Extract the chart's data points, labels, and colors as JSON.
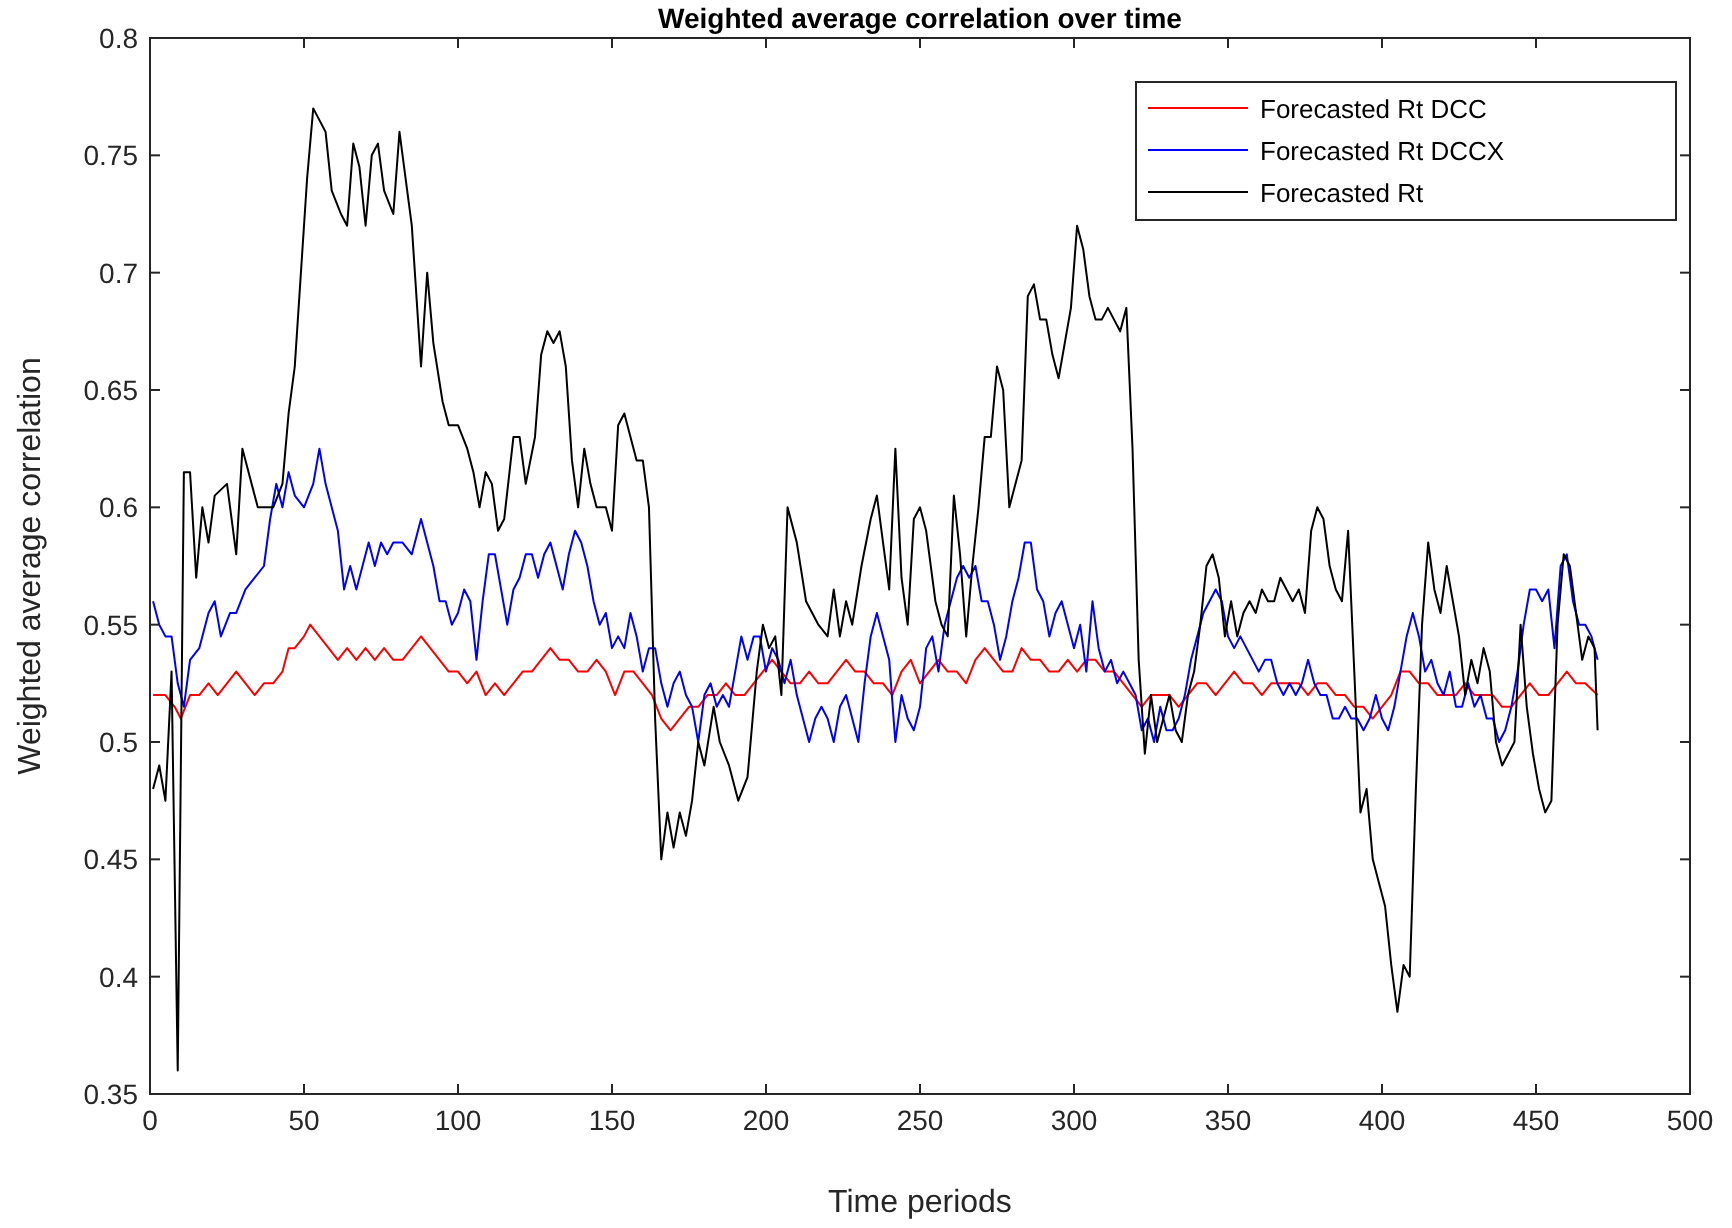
{
  "chart_data": {
    "type": "line",
    "title": "Weighted average correlation over time",
    "xlabel": "Time periods",
    "ylabel": "Weighted average correlation",
    "xlim": [
      0,
      500
    ],
    "xticks": [
      0,
      50,
      100,
      150,
      200,
      250,
      300,
      350,
      400,
      450,
      500
    ],
    "ylim": [
      0.35,
      0.8
    ],
    "yticks": [
      0.35,
      0.4,
      0.45,
      0.5,
      0.55,
      0.6,
      0.65,
      0.7,
      0.75,
      0.8
    ],
    "legend": "top right",
    "grid": false,
    "marker": "none",
    "line_style": "solid",
    "series": [
      {
        "name": "Forecasted Rt DCC",
        "color": "#ff0000",
        "x": [
          1,
          5,
          8,
          10,
          13,
          16,
          19,
          22,
          25,
          28,
          31,
          34,
          37,
          40,
          43,
          45,
          47,
          50,
          52,
          55,
          58,
          61,
          64,
          67,
          70,
          73,
          76,
          79,
          82,
          85,
          88,
          91,
          94,
          97,
          100,
          103,
          106,
          109,
          112,
          115,
          118,
          121,
          124,
          127,
          130,
          133,
          136,
          139,
          142,
          145,
          148,
          151,
          154,
          157,
          160,
          163,
          166,
          169,
          172,
          175,
          178,
          181,
          184,
          187,
          190,
          193,
          196,
          199,
          202,
          205,
          208,
          211,
          214,
          217,
          220,
          223,
          226,
          229,
          232,
          235,
          238,
          241,
          244,
          247,
          250,
          253,
          256,
          259,
          262,
          265,
          268,
          271,
          274,
          277,
          280,
          283,
          286,
          289,
          292,
          295,
          298,
          301,
          304,
          307,
          310,
          313,
          316,
          319,
          322,
          325,
          328,
          331,
          334,
          337,
          340,
          343,
          346,
          349,
          352,
          355,
          358,
          361,
          364,
          367,
          370,
          373,
          376,
          379,
          382,
          385,
          388,
          391,
          394,
          397,
          400,
          403,
          406,
          409,
          412,
          415,
          418,
          421,
          424,
          427,
          430,
          433,
          436,
          439,
          442,
          445,
          448,
          451,
          454,
          457,
          460,
          463,
          466,
          470
        ],
        "values": [
          0.52,
          0.52,
          0.515,
          0.51,
          0.52,
          0.52,
          0.525,
          0.52,
          0.525,
          0.53,
          0.525,
          0.52,
          0.525,
          0.525,
          0.53,
          0.54,
          0.54,
          0.545,
          0.55,
          0.545,
          0.54,
          0.535,
          0.54,
          0.535,
          0.54,
          0.535,
          0.54,
          0.535,
          0.535,
          0.54,
          0.545,
          0.54,
          0.535,
          0.53,
          0.53,
          0.525,
          0.53,
          0.52,
          0.525,
          0.52,
          0.525,
          0.53,
          0.53,
          0.535,
          0.54,
          0.535,
          0.535,
          0.53,
          0.53,
          0.535,
          0.53,
          0.52,
          0.53,
          0.53,
          0.525,
          0.52,
          0.51,
          0.505,
          0.51,
          0.515,
          0.515,
          0.52,
          0.52,
          0.525,
          0.52,
          0.52,
          0.525,
          0.53,
          0.535,
          0.53,
          0.525,
          0.525,
          0.53,
          0.525,
          0.525,
          0.53,
          0.535,
          0.53,
          0.53,
          0.525,
          0.525,
          0.52,
          0.53,
          0.535,
          0.525,
          0.53,
          0.535,
          0.53,
          0.53,
          0.525,
          0.535,
          0.54,
          0.535,
          0.53,
          0.53,
          0.54,
          0.535,
          0.535,
          0.53,
          0.53,
          0.535,
          0.53,
          0.535,
          0.535,
          0.53,
          0.53,
          0.525,
          0.52,
          0.515,
          0.52,
          0.52,
          0.52,
          0.515,
          0.52,
          0.525,
          0.525,
          0.52,
          0.525,
          0.53,
          0.525,
          0.525,
          0.52,
          0.525,
          0.525,
          0.525,
          0.525,
          0.52,
          0.525,
          0.525,
          0.52,
          0.52,
          0.515,
          0.515,
          0.51,
          0.515,
          0.52,
          0.53,
          0.53,
          0.525,
          0.525,
          0.52,
          0.52,
          0.52,
          0.525,
          0.52,
          0.52,
          0.52,
          0.515,
          0.515,
          0.52,
          0.525,
          0.52,
          0.52,
          0.525,
          0.53,
          0.525,
          0.525,
          0.52
        ]
      },
      {
        "name": "Forecasted Rt DCCX",
        "color": "#0000ff",
        "x": [
          1,
          3,
          5,
          7,
          9,
          11,
          13,
          16,
          19,
          21,
          23,
          26,
          28,
          31,
          34,
          37,
          39,
          41,
          43,
          45,
          47,
          50,
          53,
          55,
          57,
          59,
          61,
          63,
          65,
          67,
          69,
          71,
          73,
          75,
          77,
          79,
          82,
          85,
          88,
          90,
          92,
          94,
          96,
          98,
          100,
          102,
          104,
          106,
          108,
          110,
          112,
          114,
          116,
          118,
          120,
          122,
          124,
          126,
          128,
          130,
          132,
          134,
          136,
          138,
          140,
          142,
          144,
          146,
          148,
          150,
          152,
          154,
          156,
          158,
          160,
          162,
          164,
          166,
          168,
          170,
          172,
          174,
          176,
          178,
          180,
          182,
          184,
          186,
          188,
          190,
          192,
          194,
          196,
          198,
          200,
          202,
          204,
          206,
          208,
          210,
          212,
          214,
          216,
          218,
          220,
          222,
          224,
          226,
          228,
          230,
          232,
          234,
          236,
          238,
          240,
          242,
          244,
          246,
          248,
          250,
          252,
          254,
          256,
          258,
          260,
          262,
          264,
          266,
          268,
          270,
          272,
          274,
          276,
          278,
          280,
          282,
          284,
          286,
          288,
          290,
          292,
          294,
          296,
          298,
          300,
          302,
          304,
          306,
          308,
          310,
          312,
          314,
          316,
          318,
          320,
          322,
          324,
          326,
          328,
          330,
          332,
          334,
          336,
          338,
          340,
          342,
          344,
          346,
          348,
          350,
          352,
          354,
          356,
          358,
          360,
          362,
          364,
          366,
          368,
          370,
          372,
          374,
          376,
          378,
          380,
          382,
          384,
          386,
          388,
          390,
          392,
          394,
          396,
          398,
          400,
          402,
          404,
          406,
          408,
          410,
          412,
          414,
          416,
          418,
          420,
          422,
          424,
          426,
          428,
          430,
          432,
          434,
          436,
          438,
          440,
          442,
          444,
          446,
          448,
          450,
          452,
          454,
          456,
          458,
          460,
          462,
          464,
          466,
          468,
          470
        ],
        "values": [
          0.56,
          0.55,
          0.545,
          0.545,
          0.525,
          0.515,
          0.535,
          0.54,
          0.555,
          0.56,
          0.545,
          0.555,
          0.555,
          0.565,
          0.57,
          0.575,
          0.595,
          0.61,
          0.6,
          0.615,
          0.605,
          0.6,
          0.61,
          0.625,
          0.61,
          0.6,
          0.59,
          0.565,
          0.575,
          0.565,
          0.575,
          0.585,
          0.575,
          0.585,
          0.58,
          0.585,
          0.585,
          0.58,
          0.595,
          0.585,
          0.575,
          0.56,
          0.56,
          0.55,
          0.555,
          0.565,
          0.56,
          0.535,
          0.56,
          0.58,
          0.58,
          0.565,
          0.55,
          0.565,
          0.57,
          0.58,
          0.58,
          0.57,
          0.58,
          0.585,
          0.575,
          0.565,
          0.58,
          0.59,
          0.585,
          0.575,
          0.56,
          0.55,
          0.555,
          0.54,
          0.545,
          0.54,
          0.555,
          0.545,
          0.53,
          0.54,
          0.54,
          0.525,
          0.515,
          0.525,
          0.53,
          0.52,
          0.515,
          0.5,
          0.52,
          0.525,
          0.515,
          0.52,
          0.515,
          0.53,
          0.545,
          0.535,
          0.545,
          0.545,
          0.53,
          0.54,
          0.535,
          0.525,
          0.535,
          0.52,
          0.51,
          0.5,
          0.51,
          0.515,
          0.51,
          0.5,
          0.515,
          0.52,
          0.51,
          0.5,
          0.525,
          0.545,
          0.555,
          0.545,
          0.535,
          0.5,
          0.52,
          0.51,
          0.505,
          0.515,
          0.54,
          0.545,
          0.53,
          0.55,
          0.56,
          0.57,
          0.575,
          0.57,
          0.575,
          0.56,
          0.56,
          0.55,
          0.535,
          0.545,
          0.56,
          0.57,
          0.585,
          0.585,
          0.565,
          0.56,
          0.545,
          0.555,
          0.56,
          0.55,
          0.54,
          0.55,
          0.53,
          0.56,
          0.54,
          0.53,
          0.535,
          0.525,
          0.53,
          0.525,
          0.52,
          0.505,
          0.51,
          0.5,
          0.515,
          0.505,
          0.505,
          0.51,
          0.52,
          0.535,
          0.545,
          0.555,
          0.56,
          0.565,
          0.56,
          0.545,
          0.54,
          0.545,
          0.54,
          0.535,
          0.53,
          0.535,
          0.535,
          0.525,
          0.52,
          0.525,
          0.52,
          0.525,
          0.535,
          0.525,
          0.52,
          0.52,
          0.51,
          0.51,
          0.515,
          0.51,
          0.51,
          0.505,
          0.51,
          0.52,
          0.51,
          0.505,
          0.515,
          0.53,
          0.545,
          0.555,
          0.545,
          0.53,
          0.535,
          0.525,
          0.52,
          0.53,
          0.515,
          0.515,
          0.525,
          0.515,
          0.52,
          0.51,
          0.51,
          0.5,
          0.505,
          0.515,
          0.53,
          0.55,
          0.565,
          0.565,
          0.56,
          0.565,
          0.54,
          0.575,
          0.58,
          0.56,
          0.55,
          0.55,
          0.545,
          0.535
        ]
      },
      {
        "name": "Forecasted Rt",
        "color": "#000000",
        "x": [
          1,
          3,
          5,
          7,
          9,
          11,
          13,
          15,
          17,
          19,
          21,
          25,
          28,
          30,
          35,
          40,
          43,
          45,
          47,
          49,
          51,
          53,
          55,
          57,
          59,
          62,
          64,
          66,
          68,
          70,
          72,
          74,
          76,
          79,
          81,
          83,
          85,
          88,
          90,
          92,
          95,
          97,
          100,
          103,
          105,
          107,
          109,
          111,
          113,
          115,
          118,
          120,
          122,
          125,
          127,
          129,
          131,
          133,
          135,
          137,
          139,
          141,
          143,
          145,
          148,
          150,
          152,
          154,
          156,
          158,
          160,
          162,
          164,
          166,
          168,
          170,
          172,
          174,
          176,
          178,
          180,
          183,
          185,
          188,
          191,
          194,
          197,
          199,
          201,
          203,
          205,
          207,
          210,
          213,
          215,
          217,
          220,
          222,
          224,
          226,
          228,
          231,
          234,
          236,
          238,
          240,
          242,
          244,
          246,
          248,
          250,
          252,
          255,
          257,
          259,
          261,
          263,
          265,
          267,
          269,
          271,
          273,
          275,
          277,
          279,
          281,
          283,
          285,
          287,
          289,
          291,
          293,
          295,
          297,
          299,
          301,
          303,
          305,
          307,
          309,
          311,
          313,
          315,
          317,
          319,
          321,
          323,
          325,
          327,
          329,
          331,
          333,
          335,
          337,
          339,
          341,
          343,
          345,
          347,
          349,
          351,
          353,
          355,
          357,
          359,
          361,
          363,
          365,
          367,
          369,
          371,
          373,
          375,
          377,
          379,
          381,
          383,
          385,
          387,
          389,
          391,
          393,
          395,
          397,
          399,
          401,
          403,
          405,
          407,
          409,
          411,
          413,
          415,
          417,
          419,
          421,
          423,
          425,
          427,
          429,
          431,
          433,
          435,
          437,
          439,
          441,
          443,
          445,
          447,
          449,
          451,
          453,
          455,
          457,
          459,
          461,
          463,
          465,
          467,
          469,
          470
        ],
        "values": [
          0.48,
          0.49,
          0.475,
          0.53,
          0.36,
          0.615,
          0.615,
          0.57,
          0.6,
          0.585,
          0.605,
          0.61,
          0.58,
          0.625,
          0.6,
          0.6,
          0.61,
          0.64,
          0.66,
          0.7,
          0.74,
          0.77,
          0.765,
          0.76,
          0.735,
          0.725,
          0.72,
          0.755,
          0.745,
          0.72,
          0.75,
          0.755,
          0.735,
          0.725,
          0.76,
          0.74,
          0.72,
          0.66,
          0.7,
          0.67,
          0.645,
          0.635,
          0.635,
          0.625,
          0.615,
          0.6,
          0.615,
          0.61,
          0.59,
          0.595,
          0.63,
          0.63,
          0.61,
          0.63,
          0.665,
          0.675,
          0.67,
          0.675,
          0.66,
          0.62,
          0.6,
          0.625,
          0.61,
          0.6,
          0.6,
          0.59,
          0.635,
          0.64,
          0.63,
          0.62,
          0.62,
          0.6,
          0.51,
          0.45,
          0.47,
          0.455,
          0.47,
          0.46,
          0.475,
          0.5,
          0.49,
          0.515,
          0.5,
          0.49,
          0.475,
          0.485,
          0.53,
          0.55,
          0.54,
          0.545,
          0.52,
          0.6,
          0.585,
          0.56,
          0.555,
          0.55,
          0.545,
          0.565,
          0.545,
          0.56,
          0.55,
          0.575,
          0.595,
          0.605,
          0.585,
          0.565,
          0.625,
          0.57,
          0.55,
          0.595,
          0.6,
          0.59,
          0.56,
          0.55,
          0.545,
          0.605,
          0.58,
          0.545,
          0.575,
          0.6,
          0.63,
          0.63,
          0.66,
          0.65,
          0.6,
          0.61,
          0.62,
          0.69,
          0.695,
          0.68,
          0.68,
          0.665,
          0.655,
          0.67,
          0.685,
          0.72,
          0.71,
          0.69,
          0.68,
          0.68,
          0.685,
          0.68,
          0.675,
          0.685,
          0.625,
          0.535,
          0.495,
          0.52,
          0.5,
          0.51,
          0.52,
          0.505,
          0.5,
          0.52,
          0.53,
          0.55,
          0.575,
          0.58,
          0.57,
          0.545,
          0.56,
          0.545,
          0.555,
          0.56,
          0.555,
          0.565,
          0.56,
          0.56,
          0.57,
          0.565,
          0.56,
          0.565,
          0.555,
          0.59,
          0.6,
          0.595,
          0.575,
          0.565,
          0.56,
          0.59,
          0.53,
          0.47,
          0.48,
          0.45,
          0.44,
          0.43,
          0.405,
          0.385,
          0.405,
          0.4,
          0.48,
          0.55,
          0.585,
          0.565,
          0.555,
          0.575,
          0.56,
          0.545,
          0.52,
          0.535,
          0.525,
          0.54,
          0.53,
          0.5,
          0.49,
          0.495,
          0.5,
          0.55,
          0.515,
          0.495,
          0.48,
          0.47,
          0.475,
          0.55,
          0.58,
          0.575,
          0.555,
          0.535,
          0.545,
          0.54,
          0.505
        ]
      }
    ]
  }
}
